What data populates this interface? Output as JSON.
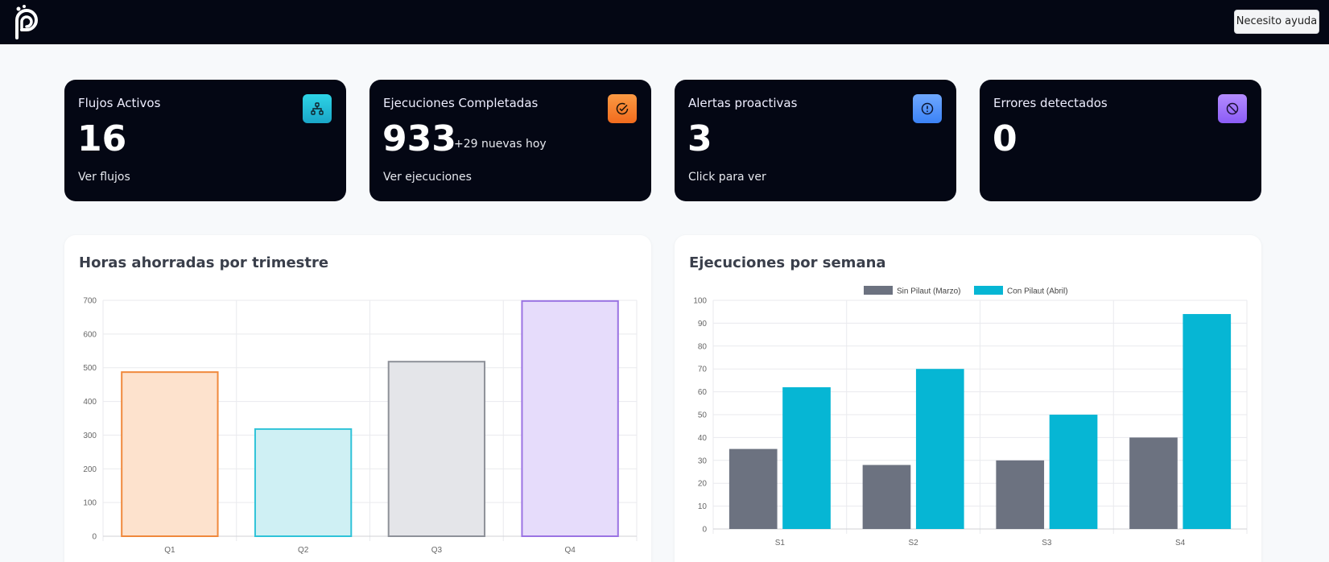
{
  "header": {
    "logo": "pilaut-logo",
    "help_label": "Necesito ayuda"
  },
  "stats": [
    {
      "label": "Flujos Activos",
      "value": "16",
      "sub": "",
      "link": "Ver flujos",
      "icon": "sitemap-icon",
      "color_top": "#2dd4e6",
      "color_bottom": "#1aa6c8"
    },
    {
      "label": "Ejecuciones Completadas",
      "value": "933",
      "sub": "+29 nuevas hoy",
      "link": "Ver ejecuciones",
      "icon": "check-circle-icon",
      "color_top": "#fb9a44",
      "color_bottom": "#f26b1d"
    },
    {
      "label": "Alertas proactivas",
      "value": "3",
      "sub": "",
      "link": "Click para ver",
      "icon": "alert-circle-icon",
      "color_top": "#6fa8ff",
      "color_bottom": "#3b82f6"
    },
    {
      "label": "Errores detectados",
      "value": "0",
      "sub": "",
      "link": "",
      "icon": "ban-icon",
      "color_top": "#b48cff",
      "color_bottom": "#8b5cf6"
    }
  ],
  "chart_data": [
    {
      "type": "bar",
      "title": "Horas ahorradas por trimestre",
      "categories": [
        "Q1",
        "Q2",
        "Q3",
        "Q4"
      ],
      "values": [
        487,
        318,
        518,
        698
      ],
      "fill_colors": [
        "#fde2cd",
        "#cff0f4",
        "#e4e5e9",
        "#e6dcfb"
      ],
      "stroke_colors": [
        "#f0893c",
        "#2fc3d8",
        "#8e9199",
        "#9a73e3"
      ],
      "ylim": [
        0,
        700
      ],
      "yticks": [
        0,
        100,
        200,
        300,
        400,
        500,
        600,
        700
      ],
      "grid": true
    },
    {
      "type": "bar",
      "title": "Ejecuciones por semana",
      "categories": [
        "S1",
        "S2",
        "S3",
        "S4"
      ],
      "series": [
        {
          "name": "Sin Pilaut (Marzo)",
          "values": [
            35,
            28,
            30,
            40
          ],
          "color": "#6c7280"
        },
        {
          "name": "Con Pilaut (Abril)",
          "values": [
            62,
            70,
            50,
            94
          ],
          "color": "#06b6d4"
        }
      ],
      "ylim": [
        0,
        100
      ],
      "yticks": [
        0,
        10,
        20,
        30,
        40,
        50,
        60,
        70,
        80,
        90,
        100
      ],
      "legend": "top-center",
      "grid": true
    }
  ]
}
